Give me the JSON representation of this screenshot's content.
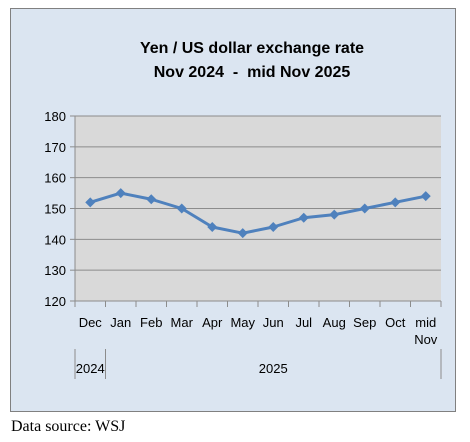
{
  "chart_data": {
    "type": "line",
    "title": "Yen / US dollar exchange rate",
    "subtitle": "Nov 2024  -  mid Nov 2025",
    "categories": [
      "Dec",
      "Jan",
      "Feb",
      "Mar",
      "Apr",
      "May",
      "Jun",
      "Jul",
      "Aug",
      "Sep",
      "Oct",
      "mid Nov"
    ],
    "category_lines": [
      [
        "Dec"
      ],
      [
        "Jan"
      ],
      [
        "Feb"
      ],
      [
        "Mar"
      ],
      [
        "Apr"
      ],
      [
        "May"
      ],
      [
        "Jun"
      ],
      [
        "Jul"
      ],
      [
        "Aug"
      ],
      [
        "Sep"
      ],
      [
        "Oct"
      ],
      [
        "mid",
        "Nov"
      ]
    ],
    "year_groups": [
      {
        "label": "2024",
        "count": 1
      },
      {
        "label": "2025",
        "count": 11
      }
    ],
    "series": [
      {
        "values": [
          152,
          155,
          153,
          150,
          144,
          142,
          144,
          147,
          148,
          150,
          152,
          154
        ],
        "color": "#4f81bd"
      }
    ],
    "yticks": [
      120,
      130,
      140,
      150,
      160,
      170,
      180
    ],
    "ylim": [
      120,
      180
    ],
    "grid": true,
    "plot_background": "#d9d9d9",
    "frame_background": "#dbe5f1"
  },
  "source_note": "Data source: WSJ"
}
